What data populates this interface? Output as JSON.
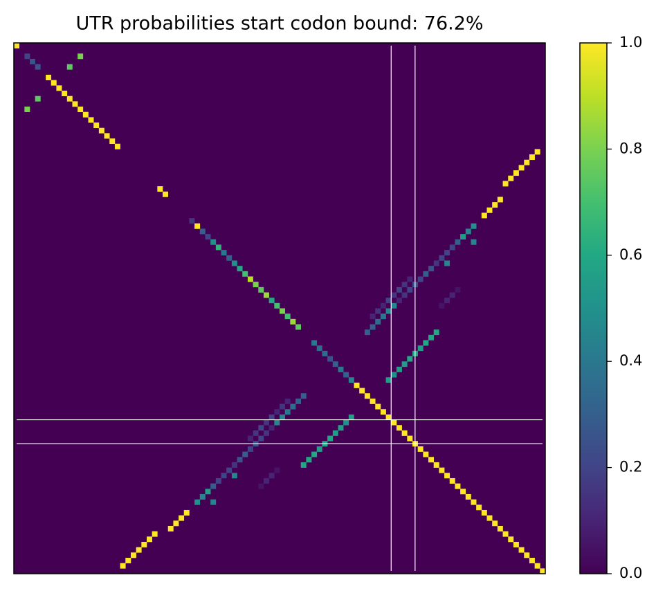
{
  "chart_data": {
    "type": "heatmap",
    "title": "UTR probabilities start codon bound: 76.2%",
    "colormap": "viridis",
    "fill_value": 0,
    "xlim": [
      -0.5,
      99.5
    ],
    "ylim": [
      99.5,
      -0.5
    ],
    "clim": [
      0,
      1
    ],
    "cticks": [
      {
        "value": 0,
        "label": "0.0"
      },
      0.2,
      0.4,
      0.6,
      0.8,
      {
        "value": 1,
        "label": "1.0"
      }
    ],
    "vlines": [
      70.5,
      75
    ],
    "hlines": [
      70.5,
      75
    ],
    "cells": [
      {
        "x": 0,
        "y": 0,
        "value": 1
      },
      {
        "x": 2,
        "y": 2,
        "value": 0.2
      },
      {
        "x": 3,
        "y": 3,
        "value": 0.25
      },
      {
        "x": 4,
        "y": 4,
        "value": 0.25
      },
      {
        "x": 6,
        "y": 6,
        "value": 1
      },
      {
        "x": 7,
        "y": 7,
        "value": 1
      },
      {
        "x": 8,
        "y": 8,
        "value": 1
      },
      {
        "x": 9,
        "y": 9,
        "value": 1
      },
      {
        "x": 10,
        "y": 10,
        "value": 1
      },
      {
        "x": 11,
        "y": 11,
        "value": 1
      },
      {
        "x": 12,
        "y": 12,
        "value": 1
      },
      {
        "x": 13,
        "y": 13,
        "value": 1
      },
      {
        "x": 14,
        "y": 14,
        "value": 1
      },
      {
        "x": 15,
        "y": 15,
        "value": 1
      },
      {
        "x": 16,
        "y": 16,
        "value": 1
      },
      {
        "x": 17,
        "y": 17,
        "value": 1
      },
      {
        "x": 18,
        "y": 18,
        "value": 1
      },
      {
        "x": 19,
        "y": 19,
        "value": 1
      },
      {
        "x": 27,
        "y": 27,
        "value": 1
      },
      {
        "x": 28,
        "y": 28,
        "value": 1
      },
      {
        "x": 33,
        "y": 33,
        "value": 0.15
      },
      {
        "x": 34,
        "y": 34,
        "value": 1
      },
      {
        "x": 35,
        "y": 35,
        "value": 0.3
      },
      {
        "x": 36,
        "y": 36,
        "value": 0.2
      },
      {
        "x": 37,
        "y": 37,
        "value": 0.5
      },
      {
        "x": 38,
        "y": 38,
        "value": 0.65
      },
      {
        "x": 39,
        "y": 39,
        "value": 0.4
      },
      {
        "x": 40,
        "y": 40,
        "value": 0.3
      },
      {
        "x": 41,
        "y": 41,
        "value": 0.5
      },
      {
        "x": 42,
        "y": 42,
        "value": 0.6
      },
      {
        "x": 43,
        "y": 43,
        "value": 0.7
      },
      {
        "x": 44,
        "y": 44,
        "value": 0.9
      },
      {
        "x": 45,
        "y": 45,
        "value": 0.8
      },
      {
        "x": 46,
        "y": 46,
        "value": 0.75
      },
      {
        "x": 47,
        "y": 47,
        "value": 0.85
      },
      {
        "x": 48,
        "y": 48,
        "value": 0.6
      },
      {
        "x": 49,
        "y": 49,
        "value": 0.7
      },
      {
        "x": 50,
        "y": 50,
        "value": 0.8
      },
      {
        "x": 51,
        "y": 51,
        "value": 0.7
      },
      {
        "x": 52,
        "y": 52,
        "value": 0.85
      },
      {
        "x": 53,
        "y": 53,
        "value": 0.75
      },
      {
        "x": 56,
        "y": 56,
        "value": 0.4
      },
      {
        "x": 57,
        "y": 57,
        "value": 0.35
      },
      {
        "x": 58,
        "y": 58,
        "value": 0.35
      },
      {
        "x": 59,
        "y": 59,
        "value": 0.25
      },
      {
        "x": 60,
        "y": 60,
        "value": 0.3
      },
      {
        "x": 61,
        "y": 61,
        "value": 0.4
      },
      {
        "x": 62,
        "y": 62,
        "value": 0.3
      },
      {
        "x": 63,
        "y": 63,
        "value": 0.45
      },
      {
        "x": 64,
        "y": 64,
        "value": 1
      },
      {
        "x": 65,
        "y": 65,
        "value": 1
      },
      {
        "x": 66,
        "y": 66,
        "value": 1
      },
      {
        "x": 67,
        "y": 67,
        "value": 1
      },
      {
        "x": 68,
        "y": 68,
        "value": 1
      },
      {
        "x": 69,
        "y": 69,
        "value": 1
      },
      {
        "x": 70,
        "y": 70,
        "value": 1
      },
      {
        "x": 71,
        "y": 71,
        "value": 1
      },
      {
        "x": 72,
        "y": 72,
        "value": 1
      },
      {
        "x": 73,
        "y": 73,
        "value": 1
      },
      {
        "x": 74,
        "y": 74,
        "value": 1
      },
      {
        "x": 75,
        "y": 75,
        "value": 1
      },
      {
        "x": 76,
        "y": 76,
        "value": 1
      },
      {
        "x": 77,
        "y": 77,
        "value": 1
      },
      {
        "x": 78,
        "y": 78,
        "value": 1
      },
      {
        "x": 79,
        "y": 79,
        "value": 1
      },
      {
        "x": 80,
        "y": 80,
        "value": 1
      },
      {
        "x": 81,
        "y": 81,
        "value": 1
      },
      {
        "x": 82,
        "y": 82,
        "value": 1
      },
      {
        "x": 83,
        "y": 83,
        "value": 1
      },
      {
        "x": 84,
        "y": 84,
        "value": 1
      },
      {
        "x": 85,
        "y": 85,
        "value": 1
      },
      {
        "x": 86,
        "y": 86,
        "value": 1
      },
      {
        "x": 87,
        "y": 87,
        "value": 1
      },
      {
        "x": 88,
        "y": 88,
        "value": 1
      },
      {
        "x": 89,
        "y": 89,
        "value": 1
      },
      {
        "x": 90,
        "y": 90,
        "value": 1
      },
      {
        "x": 91,
        "y": 91,
        "value": 1
      },
      {
        "x": 92,
        "y": 92,
        "value": 1
      },
      {
        "x": 93,
        "y": 93,
        "value": 1
      },
      {
        "x": 94,
        "y": 94,
        "value": 1
      },
      {
        "x": 95,
        "y": 95,
        "value": 1
      },
      {
        "x": 96,
        "y": 96,
        "value": 1
      },
      {
        "x": 97,
        "y": 97,
        "value": 1
      },
      {
        "x": 98,
        "y": 98,
        "value": 1
      },
      {
        "x": 99,
        "y": 99,
        "value": 1
      },
      {
        "x": 12,
        "y": 2,
        "value": 0.8
      },
      {
        "x": 10,
        "y": 4,
        "value": 0.75
      },
      {
        "x": 4,
        "y": 10,
        "value": 0.75
      },
      {
        "x": 2,
        "y": 12,
        "value": 0.8
      },
      {
        "x": 98,
        "y": 20,
        "value": 1
      },
      {
        "x": 97,
        "y": 21,
        "value": 1
      },
      {
        "x": 96,
        "y": 22,
        "value": 1
      },
      {
        "x": 95,
        "y": 23,
        "value": 1
      },
      {
        "x": 94,
        "y": 24,
        "value": 1
      },
      {
        "x": 93,
        "y": 25,
        "value": 1
      },
      {
        "x": 92,
        "y": 26,
        "value": 1
      },
      {
        "x": 20,
        "y": 98,
        "value": 1
      },
      {
        "x": 21,
        "y": 97,
        "value": 1
      },
      {
        "x": 22,
        "y": 96,
        "value": 1
      },
      {
        "x": 23,
        "y": 95,
        "value": 1
      },
      {
        "x": 24,
        "y": 94,
        "value": 1
      },
      {
        "x": 25,
        "y": 93,
        "value": 1
      },
      {
        "x": 26,
        "y": 92,
        "value": 1
      },
      {
        "x": 91,
        "y": 29,
        "value": 1
      },
      {
        "x": 90,
        "y": 30,
        "value": 1
      },
      {
        "x": 89,
        "y": 31,
        "value": 1
      },
      {
        "x": 88,
        "y": 32,
        "value": 1
      },
      {
        "x": 29,
        "y": 91,
        "value": 1
      },
      {
        "x": 30,
        "y": 90,
        "value": 1
      },
      {
        "x": 31,
        "y": 89,
        "value": 1
      },
      {
        "x": 32,
        "y": 88,
        "value": 1
      },
      {
        "x": 86,
        "y": 34,
        "value": 0.5
      },
      {
        "x": 85,
        "y": 35,
        "value": 0.45
      },
      {
        "x": 84,
        "y": 36,
        "value": 0.55
      },
      {
        "x": 83,
        "y": 37,
        "value": 0.3
      },
      {
        "x": 82,
        "y": 38,
        "value": 0.2
      },
      {
        "x": 34,
        "y": 86,
        "value": 0.5
      },
      {
        "x": 35,
        "y": 85,
        "value": 0.45
      },
      {
        "x": 36,
        "y": 84,
        "value": 0.55
      },
      {
        "x": 37,
        "y": 83,
        "value": 0.3
      },
      {
        "x": 38,
        "y": 82,
        "value": 0.2
      },
      {
        "x": 86,
        "y": 37,
        "value": 0.45
      },
      {
        "x": 81,
        "y": 41,
        "value": 0.45
      },
      {
        "x": 37,
        "y": 86,
        "value": 0.45
      },
      {
        "x": 41,
        "y": 81,
        "value": 0.45
      },
      {
        "x": 79,
        "y": 54,
        "value": 0.6
      },
      {
        "x": 78,
        "y": 55,
        "value": 0.6
      },
      {
        "x": 77,
        "y": 56,
        "value": 0.6
      },
      {
        "x": 76,
        "y": 57,
        "value": 0.55
      },
      {
        "x": 75,
        "y": 58,
        "value": 0.6
      },
      {
        "x": 74,
        "y": 59,
        "value": 0.6
      },
      {
        "x": 73,
        "y": 60,
        "value": 0.55
      },
      {
        "x": 72,
        "y": 61,
        "value": 0.55
      },
      {
        "x": 71,
        "y": 62,
        "value": 0.5
      },
      {
        "x": 70,
        "y": 63,
        "value": 0.55
      },
      {
        "x": 54,
        "y": 79,
        "value": 0.6
      },
      {
        "x": 55,
        "y": 78,
        "value": 0.6
      },
      {
        "x": 56,
        "y": 77,
        "value": 0.6
      },
      {
        "x": 57,
        "y": 76,
        "value": 0.55
      },
      {
        "x": 58,
        "y": 75,
        "value": 0.6
      },
      {
        "x": 59,
        "y": 74,
        "value": 0.6
      },
      {
        "x": 60,
        "y": 73,
        "value": 0.55
      },
      {
        "x": 61,
        "y": 72,
        "value": 0.55
      },
      {
        "x": 62,
        "y": 71,
        "value": 0.5
      },
      {
        "x": 63,
        "y": 70,
        "value": 0.55
      },
      {
        "x": 81,
        "y": 39,
        "value": 0.2
      },
      {
        "x": 80,
        "y": 40,
        "value": 0.2
      },
      {
        "x": 79,
        "y": 41,
        "value": 0.15
      },
      {
        "x": 78,
        "y": 42,
        "value": 0.25
      },
      {
        "x": 77,
        "y": 43,
        "value": 0.3
      },
      {
        "x": 76,
        "y": 44,
        "value": 0.2
      },
      {
        "x": 75,
        "y": 45,
        "value": 0.25
      },
      {
        "x": 74,
        "y": 46,
        "value": 0.2
      },
      {
        "x": 73,
        "y": 47,
        "value": 0.15
      },
      {
        "x": 72,
        "y": 48,
        "value": 0.1
      },
      {
        "x": 71,
        "y": 49,
        "value": 0.45
      },
      {
        "x": 70,
        "y": 50,
        "value": 0.45
      },
      {
        "x": 69,
        "y": 51,
        "value": 0.4
      },
      {
        "x": 68,
        "y": 52,
        "value": 0.35
      },
      {
        "x": 67,
        "y": 53,
        "value": 0.3
      },
      {
        "x": 66,
        "y": 54,
        "value": 0.3
      },
      {
        "x": 39,
        "y": 81,
        "value": 0.2
      },
      {
        "x": 40,
        "y": 80,
        "value": 0.2
      },
      {
        "x": 41,
        "y": 79,
        "value": 0.15
      },
      {
        "x": 42,
        "y": 78,
        "value": 0.25
      },
      {
        "x": 43,
        "y": 77,
        "value": 0.3
      },
      {
        "x": 44,
        "y": 76,
        "value": 0.2
      },
      {
        "x": 45,
        "y": 75,
        "value": 0.25
      },
      {
        "x": 46,
        "y": 74,
        "value": 0.2
      },
      {
        "x": 47,
        "y": 73,
        "value": 0.15
      },
      {
        "x": 48,
        "y": 72,
        "value": 0.1
      },
      {
        "x": 49,
        "y": 71,
        "value": 0.45
      },
      {
        "x": 50,
        "y": 70,
        "value": 0.45
      },
      {
        "x": 51,
        "y": 69,
        "value": 0.4
      },
      {
        "x": 52,
        "y": 68,
        "value": 0.35
      },
      {
        "x": 53,
        "y": 67,
        "value": 0.3
      },
      {
        "x": 54,
        "y": 66,
        "value": 0.3
      },
      {
        "x": 74,
        "y": 44,
        "value": 0.1
      },
      {
        "x": 73,
        "y": 45,
        "value": 0.15
      },
      {
        "x": 72,
        "y": 46,
        "value": 0.2
      },
      {
        "x": 71,
        "y": 47,
        "value": 0.15
      },
      {
        "x": 70,
        "y": 48,
        "value": 0.2
      },
      {
        "x": 69,
        "y": 49,
        "value": 0.1
      },
      {
        "x": 68,
        "y": 50,
        "value": 0.15
      },
      {
        "x": 67,
        "y": 51,
        "value": 0.1
      },
      {
        "x": 44,
        "y": 74,
        "value": 0.1
      },
      {
        "x": 45,
        "y": 73,
        "value": 0.15
      },
      {
        "x": 46,
        "y": 72,
        "value": 0.2
      },
      {
        "x": 47,
        "y": 71,
        "value": 0.15
      },
      {
        "x": 48,
        "y": 70,
        "value": 0.2
      },
      {
        "x": 49,
        "y": 69,
        "value": 0.1
      },
      {
        "x": 50,
        "y": 68,
        "value": 0.15
      },
      {
        "x": 51,
        "y": 67,
        "value": 0.1
      },
      {
        "x": 83,
        "y": 46,
        "value": 0.05
      },
      {
        "x": 82,
        "y": 47,
        "value": 0.1
      },
      {
        "x": 81,
        "y": 48,
        "value": 0.1
      },
      {
        "x": 80,
        "y": 49,
        "value": 0.05
      },
      {
        "x": 46,
        "y": 83,
        "value": 0.05
      },
      {
        "x": 47,
        "y": 82,
        "value": 0.1
      },
      {
        "x": 48,
        "y": 81,
        "value": 0.1
      },
      {
        "x": 49,
        "y": 80,
        "value": 0.05
      }
    ]
  }
}
